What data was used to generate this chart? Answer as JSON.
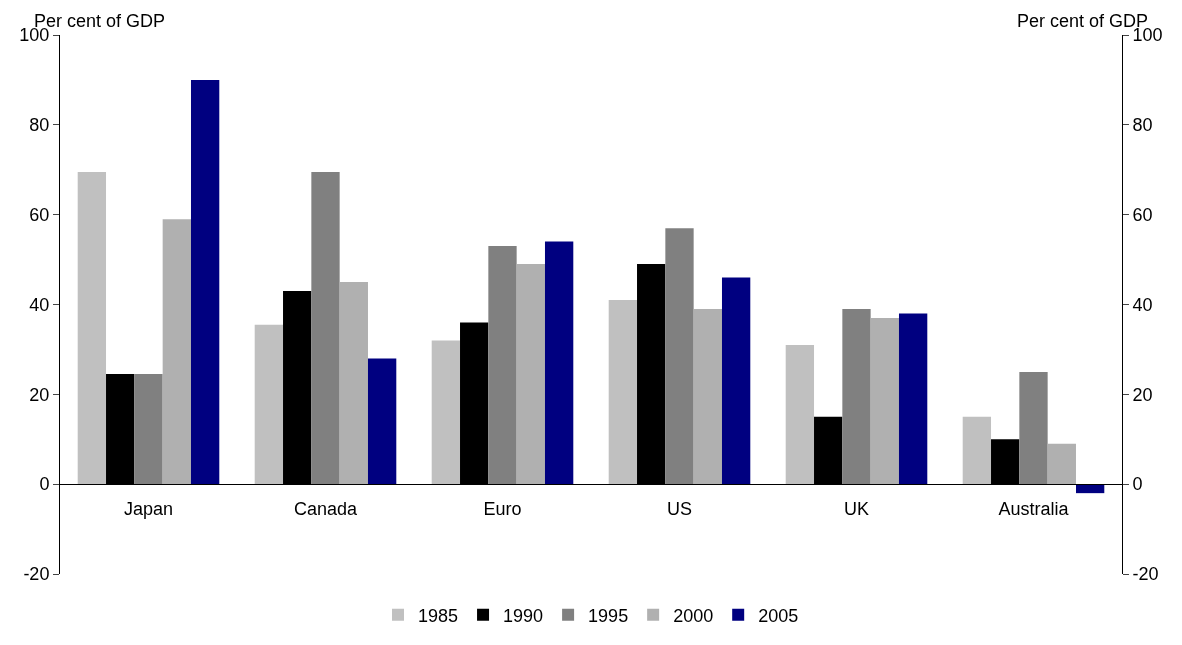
{
  "chart_data": {
    "type": "bar",
    "ylabel": "Per cent of GDP",
    "y2label": "Per cent of GDP",
    "categories": [
      "Japan",
      "Canada",
      "Euro",
      "US",
      "UK",
      "Australia"
    ],
    "series": [
      {
        "name": "1985",
        "color": "#c0c0c0",
        "values": [
          69.5,
          35.5,
          32,
          41,
          31,
          15
        ]
      },
      {
        "name": "1990",
        "color": "#000000",
        "values": [
          24.5,
          43,
          36,
          49,
          15,
          10
        ]
      },
      {
        "name": "1995",
        "color": "#808080",
        "values": [
          24.5,
          69.5,
          53,
          57,
          39,
          25
        ]
      },
      {
        "name": "2000",
        "color": "#b0b0b0",
        "values": [
          59,
          45,
          49,
          39,
          37,
          9
        ]
      },
      {
        "name": "2005",
        "color": "#000080",
        "values": [
          90,
          28,
          54,
          46,
          38,
          -2
        ]
      }
    ],
    "ylim": [
      -20,
      100
    ],
    "yticks": [
      -20,
      0,
      20,
      40,
      60,
      80,
      100
    ],
    "y2lim": [
      -20,
      100
    ],
    "y2ticks": [
      -20,
      0,
      20,
      40,
      60,
      80,
      100
    ],
    "grid": false,
    "legend": "bottom"
  }
}
